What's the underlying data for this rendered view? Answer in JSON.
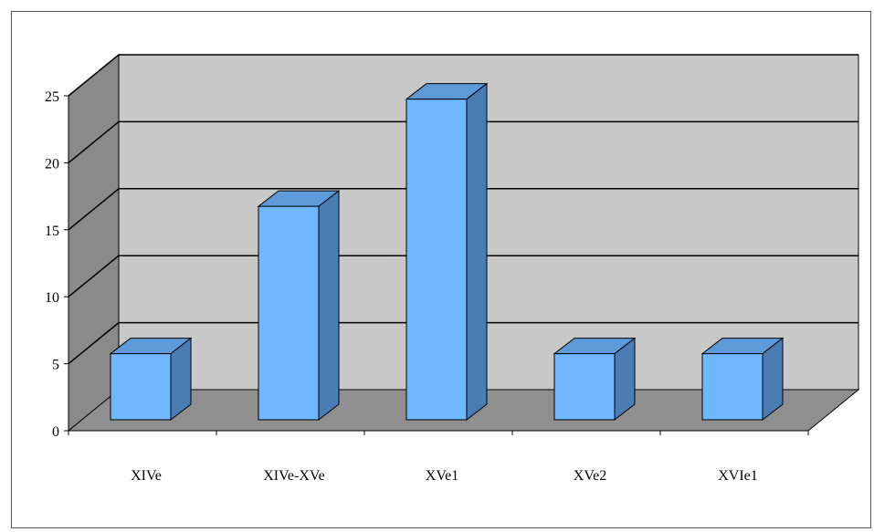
{
  "chart_data": {
    "type": "bar",
    "categories": [
      "XIVe",
      "XIVe-XVe",
      "XVe1",
      "XVe2",
      "XVIe1"
    ],
    "values": [
      5,
      16,
      24,
      5,
      5
    ],
    "ylim": [
      0,
      25
    ],
    "yticks": [
      0,
      5,
      10,
      15,
      20,
      25
    ],
    "title": "",
    "xlabel": "",
    "ylabel": "",
    "grid": true,
    "legend": "none",
    "three_d": true,
    "colors": {
      "bar_front": "#6FB7FF",
      "bar_side": "#4A7DB3",
      "bar_top": "#5C9AD9",
      "back_wall": "#C8C8C8",
      "side_wall": "#8A8A8A",
      "floor": "#8F8F8F"
    }
  }
}
